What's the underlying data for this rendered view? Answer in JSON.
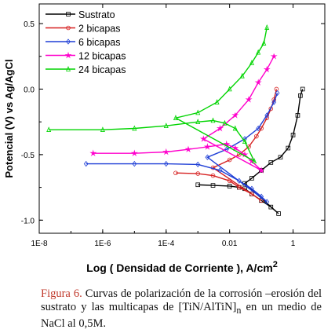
{
  "chart_data": {
    "type": "line",
    "title": "",
    "xlabel_main": "Log ( Densidad de Corriente ), A/cm",
    "xlabel_sup": "2",
    "ylabel": "Potencial (V) vs Ag/AgCl",
    "x_scale": "log",
    "xlim": [
      1e-08,
      10
    ],
    "ylim": [
      -1.1,
      0.65
    ],
    "x_ticks": [
      {
        "v": 1e-08,
        "label": "1E-8"
      },
      {
        "v": 1e-06,
        "label": "1E-6"
      },
      {
        "v": 0.0001,
        "label": "1E-4"
      },
      {
        "v": 0.01,
        "label": "0.01"
      },
      {
        "v": 1,
        "label": "1"
      }
    ],
    "y_ticks": [
      {
        "v": 0.5,
        "label": "0.5"
      },
      {
        "v": 0.0,
        "label": "0.0"
      },
      {
        "v": -0.5,
        "label": "-0.5"
      },
      {
        "v": -1.0,
        "label": "-1.0"
      }
    ],
    "legend_position": "top-left",
    "series": [
      {
        "name": "Sustrato",
        "color": "#000000",
        "marker": "square",
        "points": [
          [
            0.001,
            -0.73
          ],
          [
            0.003,
            -0.735
          ],
          [
            0.01,
            -0.74
          ],
          [
            0.02,
            -0.75
          ],
          [
            0.03,
            -0.76
          ],
          [
            0.05,
            -0.8
          ],
          [
            0.1,
            -0.85
          ],
          [
            0.2,
            -0.9
          ],
          [
            0.35,
            -0.95
          ],
          [
            0.03,
            -0.72
          ],
          [
            0.05,
            -0.68
          ],
          [
            0.1,
            -0.62
          ],
          [
            0.2,
            -0.56
          ],
          [
            0.4,
            -0.52
          ],
          [
            0.7,
            -0.45
          ],
          [
            1.0,
            -0.35
          ],
          [
            1.4,
            -0.2
          ],
          [
            1.7,
            -0.05
          ],
          [
            2.0,
            0.0
          ]
        ]
      },
      {
        "name": "2 bicapas",
        "color": "#d62020",
        "marker": "circle",
        "points": [
          [
            0.0002,
            -0.64
          ],
          [
            0.001,
            -0.645
          ],
          [
            0.003,
            -0.66
          ],
          [
            0.01,
            -0.7
          ],
          [
            0.02,
            -0.75
          ],
          [
            0.05,
            -0.8
          ],
          [
            0.1,
            -0.85
          ],
          [
            0.003,
            -0.6
          ],
          [
            0.01,
            -0.54
          ],
          [
            0.02,
            -0.5
          ],
          [
            0.04,
            -0.44
          ],
          [
            0.07,
            -0.36
          ],
          [
            0.1,
            -0.3
          ],
          [
            0.15,
            -0.22
          ],
          [
            0.2,
            -0.15
          ],
          [
            0.25,
            -0.08
          ],
          [
            0.3,
            0.0
          ]
        ]
      },
      {
        "name": "6 bicapas",
        "color": "#1f3fd6",
        "marker": "diamond",
        "points": [
          [
            3e-07,
            -0.57
          ],
          [
            1e-05,
            -0.57
          ],
          [
            0.0001,
            -0.57
          ],
          [
            0.001,
            -0.575
          ],
          [
            0.005,
            -0.62
          ],
          [
            0.02,
            -0.7
          ],
          [
            0.05,
            -0.76
          ],
          [
            0.1,
            -0.82
          ],
          [
            0.15,
            -0.86
          ],
          [
            0.002,
            -0.52
          ],
          [
            0.008,
            -0.46
          ],
          [
            0.03,
            -0.38
          ],
          [
            0.08,
            -0.3
          ],
          [
            0.15,
            -0.2
          ],
          [
            0.25,
            -0.1
          ],
          [
            0.32,
            -0.03
          ]
        ]
      },
      {
        "name": "12 bicapas",
        "color": "#ff00cc",
        "marker": "star",
        "points": [
          [
            5e-07,
            -0.49
          ],
          [
            1e-05,
            -0.49
          ],
          [
            0.0001,
            -0.48
          ],
          [
            0.0005,
            -0.46
          ],
          [
            0.002,
            -0.44
          ],
          [
            0.008,
            -0.42
          ],
          [
            0.015,
            -0.45
          ],
          [
            0.03,
            -0.5
          ],
          [
            0.05,
            -0.55
          ],
          [
            0.1,
            -0.62
          ],
          [
            0.0015,
            -0.38
          ],
          [
            0.005,
            -0.3
          ],
          [
            0.015,
            -0.2
          ],
          [
            0.04,
            -0.08
          ],
          [
            0.08,
            0.05
          ],
          [
            0.15,
            0.15
          ],
          [
            0.25,
            0.25
          ]
        ]
      },
      {
        "name": "24 bicapas",
        "color": "#00d400",
        "marker": "triangle",
        "points": [
          [
            2e-08,
            -0.31
          ],
          [
            1e-06,
            -0.31
          ],
          [
            1e-05,
            -0.3
          ],
          [
            0.0001,
            -0.28
          ],
          [
            0.001,
            -0.25
          ],
          [
            0.003,
            -0.24
          ],
          [
            0.007,
            -0.26
          ],
          [
            0.015,
            -0.3
          ],
          [
            0.03,
            -0.4
          ],
          [
            0.06,
            -0.55
          ],
          [
            0.0002,
            -0.22
          ],
          [
            0.001,
            -0.18
          ],
          [
            0.004,
            -0.1
          ],
          [
            0.01,
            0.0
          ],
          [
            0.025,
            0.1
          ],
          [
            0.05,
            0.2
          ],
          [
            0.08,
            0.28
          ],
          [
            0.12,
            0.35
          ],
          [
            0.15,
            0.47
          ]
        ]
      }
    ]
  },
  "caption": {
    "figure_label": "Figura 6.",
    "text": " Curvas de polarización de la corrosión –erosión del sustrato y las multicapas de [TiN/AlTiN]",
    "subscript": "n",
    "text_end": " en un medio de NaCl al 0,5M."
  }
}
